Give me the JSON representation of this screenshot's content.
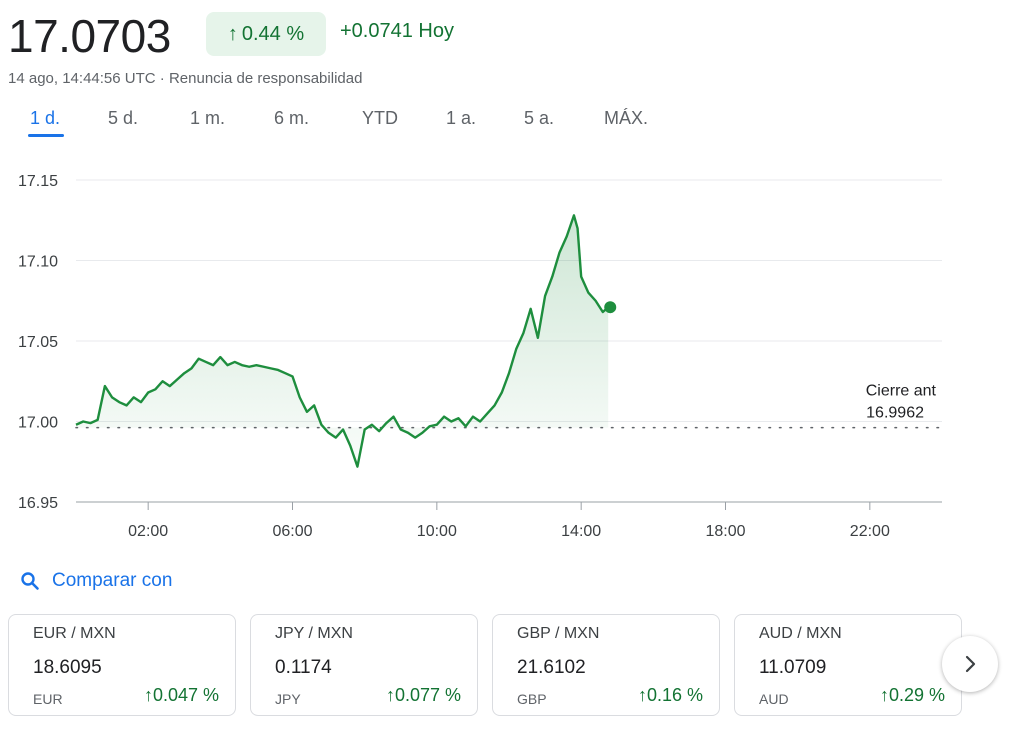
{
  "header": {
    "price": "17.0703",
    "percent_change": "0.44 %",
    "abs_change": "+0.0741",
    "period_label": "Hoy",
    "timestamp": "14 ago, 14:44:56 UTC",
    "separator": "·",
    "disclaimer": "Renuncia de responsabilidad"
  },
  "tabs": [
    {
      "label": "1 d.",
      "active": true
    },
    {
      "label": "5 d.",
      "active": false
    },
    {
      "label": "1 m.",
      "active": false
    },
    {
      "label": "6 m.",
      "active": false
    },
    {
      "label": "YTD",
      "active": false
    },
    {
      "label": "1 a.",
      "active": false
    },
    {
      "label": "5 a.",
      "active": false
    },
    {
      "label": "MÁX.",
      "active": false
    }
  ],
  "chart_data": {
    "type": "area",
    "x_ticks": [
      "02:00",
      "06:00",
      "10:00",
      "14:00",
      "18:00",
      "22:00"
    ],
    "y_ticks": [
      "17.15",
      "17.10",
      "17.05",
      "17.00",
      "16.95"
    ],
    "ylim": [
      16.95,
      17.15
    ],
    "xlim_hours": [
      0,
      24
    ],
    "grid": true,
    "prev_close": {
      "label": "Cierre ant",
      "value": 16.9962
    },
    "series": [
      {
        "color": "#1e8e3e",
        "x": [
          0.0,
          0.2,
          0.4,
          0.6,
          0.8,
          1.0,
          1.2,
          1.4,
          1.6,
          1.8,
          2.0,
          2.2,
          2.4,
          2.6,
          2.8,
          3.0,
          3.2,
          3.4,
          3.6,
          3.8,
          4.0,
          4.2,
          4.4,
          4.6,
          4.8,
          5.0,
          5.2,
          5.4,
          5.6,
          5.8,
          6.0,
          6.2,
          6.4,
          6.6,
          6.8,
          7.0,
          7.2,
          7.4,
          7.6,
          7.8,
          8.0,
          8.2,
          8.4,
          8.6,
          8.8,
          9.0,
          9.2,
          9.4,
          9.6,
          9.8,
          10.0,
          10.2,
          10.4,
          10.6,
          10.8,
          11.0,
          11.2,
          11.4,
          11.6,
          11.8,
          12.0,
          12.2,
          12.4,
          12.6,
          12.8,
          13.0,
          13.2,
          13.4,
          13.6,
          13.8,
          13.9,
          14.0,
          14.2,
          14.4,
          14.6,
          14.75
        ],
        "y": [
          16.998,
          17.0,
          16.999,
          17.001,
          17.022,
          17.015,
          17.012,
          17.01,
          17.015,
          17.012,
          17.018,
          17.02,
          17.025,
          17.022,
          17.026,
          17.03,
          17.033,
          17.039,
          17.037,
          17.035,
          17.04,
          17.035,
          17.037,
          17.035,
          17.034,
          17.035,
          17.034,
          17.033,
          17.032,
          17.03,
          17.028,
          17.015,
          17.006,
          17.01,
          16.998,
          16.993,
          16.99,
          16.995,
          16.985,
          16.972,
          16.995,
          16.998,
          16.994,
          16.999,
          17.003,
          16.995,
          16.993,
          16.99,
          16.993,
          16.997,
          16.998,
          17.003,
          17.0,
          17.002,
          16.997,
          17.003,
          17.0,
          17.005,
          17.01,
          17.018,
          17.03,
          17.045,
          17.055,
          17.07,
          17.052,
          17.078,
          17.09,
          17.105,
          17.115,
          17.128,
          17.12,
          17.09,
          17.08,
          17.075,
          17.068,
          17.071
        ]
      }
    ]
  },
  "compare": {
    "label": "Comparar con"
  },
  "cards": [
    {
      "pair": "EUR / MXN",
      "value": "18.6095",
      "currency": "EUR",
      "change": "0.047 %"
    },
    {
      "pair": "JPY / MXN",
      "value": "0.1174",
      "currency": "JPY",
      "change": "0.077 %"
    },
    {
      "pair": "GBP / MXN",
      "value": "21.6102",
      "currency": "GBP",
      "change": "0.16 %"
    },
    {
      "pair": "AUD / MXN",
      "value": "11.0709",
      "currency": "AUD",
      "change": "0.29 %"
    }
  ],
  "colors": {
    "up": "#137333",
    "line": "#1e8e3e",
    "accent": "#1a73e8"
  },
  "icons": {
    "compare": "search-icon",
    "next": "chevron-right-icon",
    "up": "arrow-up-icon"
  }
}
